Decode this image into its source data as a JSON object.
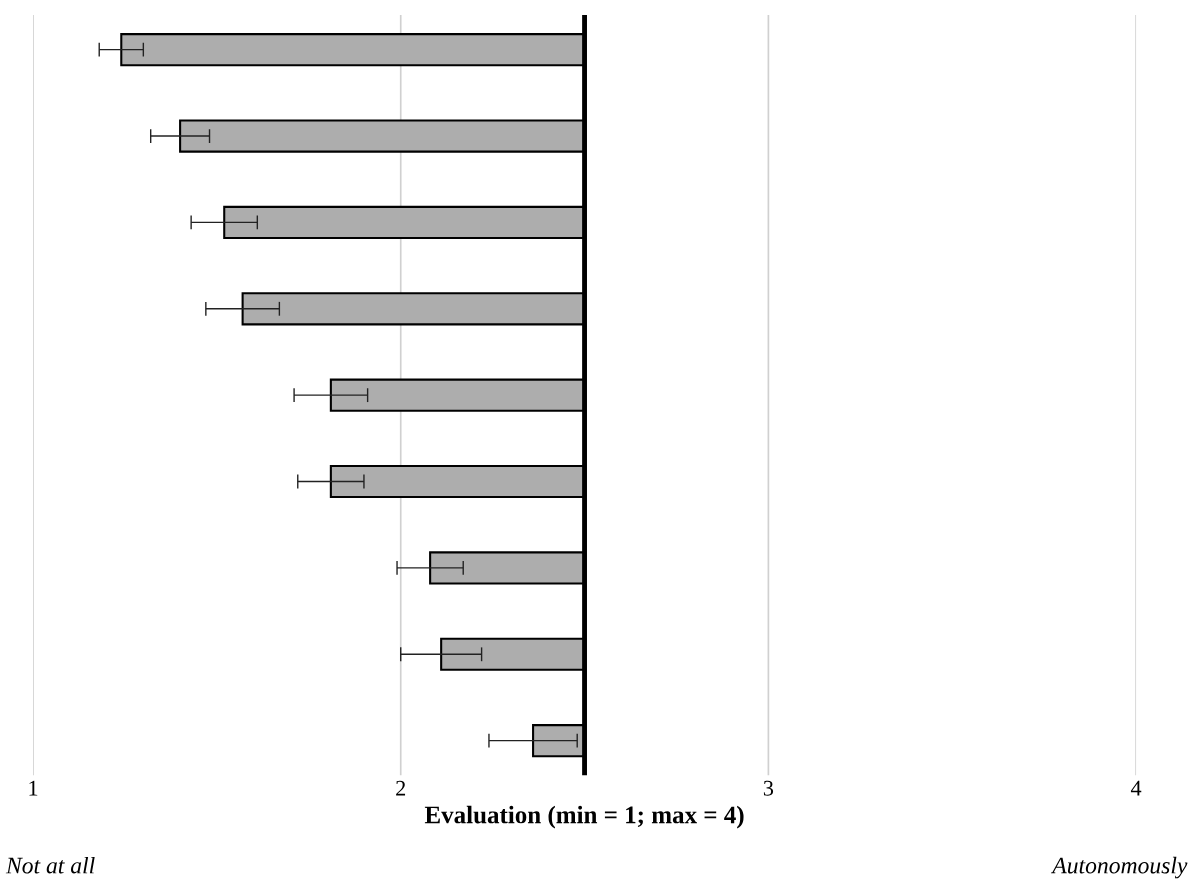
{
  "chart_data": {
    "type": "bar",
    "orientation": "horizontal",
    "xlabel": "Evaluation (min = 1; max = 4)",
    "categories": [
      null,
      null,
      null,
      null,
      null,
      null,
      null,
      null,
      null
    ],
    "base": [
      2.5,
      2.5,
      2.5,
      2.5,
      2.5,
      2.5,
      2.5,
      2.5,
      2.5
    ],
    "values": [
      -1.26,
      -1.1,
      -0.98,
      -0.93,
      -0.69,
      -0.69,
      -0.42,
      -0.39,
      -0.14
    ],
    "errors": [
      0.06,
      0.08,
      0.09,
      0.1,
      0.1,
      0.09,
      0.09,
      0.11,
      0.12
    ],
    "color": "#adadad",
    "xlim": [
      1,
      4
    ],
    "xticks": [
      1,
      2,
      3,
      4
    ],
    "grid": "x",
    "ref_lines": [
      {
        "axis": "x",
        "value": 2.5,
        "color": "#000000"
      }
    ],
    "annotations": [
      "Not at all",
      "Autonomously"
    ]
  }
}
